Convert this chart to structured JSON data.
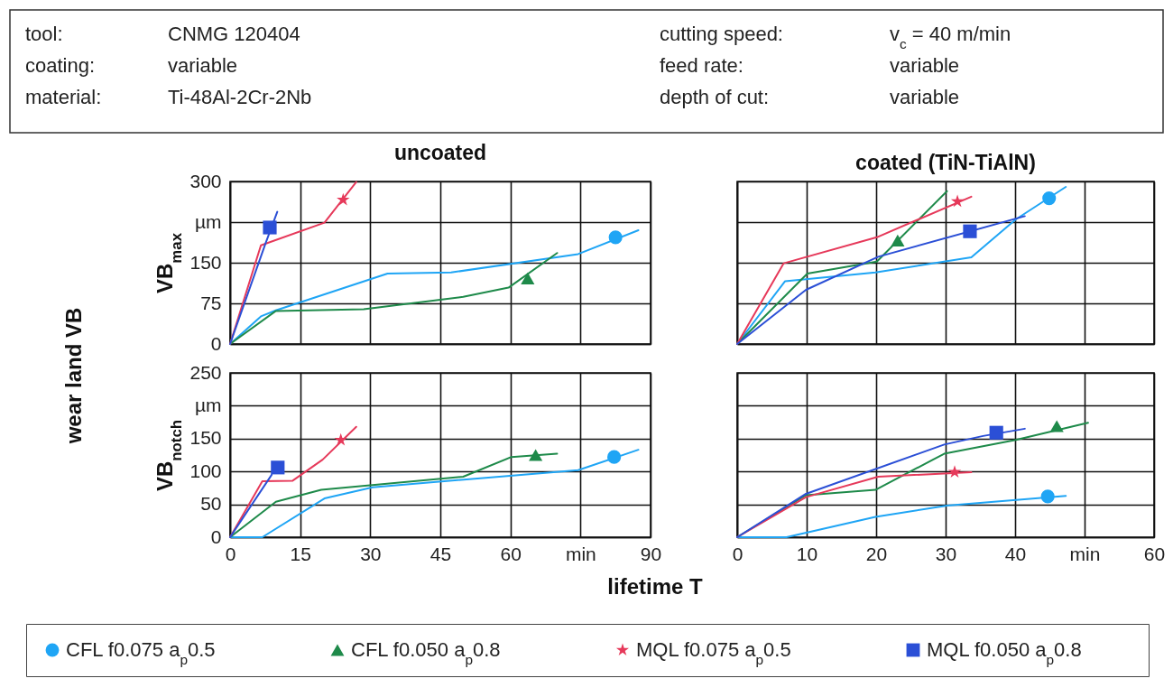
{
  "chart_data": [
    {
      "type": "other",
      "annotations": [
        "tool:",
        "CNMG 120404",
        "cutting speed:",
        "v$_{c}$ = 40 m/min",
        "coating:",
        "variable",
        "feed rate:",
        "variable",
        "material:",
        "Ti-48Al-2Cr-2Nb",
        "depth of cut:",
        "variable"
      ]
    },
    {
      "type": "line",
      "title": "uncoated",
      "ylabel": "VB$_{max}$",
      "annotations": [
        "wear land VB"
      ],
      "xlim": [
        0,
        90
      ],
      "xticks": [
        0,
        15,
        30,
        45,
        60,
        75,
        90
      ],
      "ylim": [
        0,
        300
      ],
      "yticks": [
        0,
        75,
        150,
        {
          "value": 225,
          "label": "µm"
        },
        300
      ],
      "tick_labels": "y",
      "grid": true,
      "legend": "bottom",
      "line_style": "solid",
      "series": [
        {
          "name": "CFL f0.075 a$_{p}$0.5",
          "color": "#1fa5f5",
          "marker": "none",
          "x": [
            0,
            6.6,
            9.8,
            33.7,
            47.3,
            74.5,
            87.4
          ],
          "values": [
            0,
            51,
            62,
            130,
            132,
            166,
            210
          ]
        },
        {
          "name": "CFL f0.050 a$_{p}$0.8",
          "color": "#1e8a4a",
          "marker": "none",
          "x": [
            0,
            9.8,
            28.6,
            49.9,
            59.6,
            70
          ],
          "values": [
            0,
            61,
            64,
            87,
            104,
            168
          ]
        },
        {
          "name": "MQL f0.075 a$_{p}$0.5",
          "color": "#e6395a",
          "marker": "none",
          "x": [
            0,
            6.6,
            20.2,
            27
          ],
          "values": [
            0,
            182,
            224,
            299
          ]
        },
        {
          "name": "MQL f0.050 a$_{p}$0.8",
          "color": "#2b4fd6",
          "marker": "none",
          "x": [
            0,
            7.6,
            10.1
          ],
          "values": [
            0,
            186,
            244
          ]
        },
        {
          "type": "scatter",
          "color": "#1fa5f5",
          "marker": "circle",
          "x": [
            82.5
          ],
          "values": [
            197
          ]
        },
        {
          "type": "scatter",
          "color": "#1e8a4a",
          "marker": "triangle",
          "x": [
            63.7
          ],
          "values": [
            121
          ]
        },
        {
          "type": "scatter",
          "color": "#e6395a",
          "marker": "star",
          "x": [
            24.2
          ],
          "values": [
            266
          ]
        },
        {
          "type": "scatter",
          "color": "#2b4fd6",
          "marker": "square",
          "x": [
            8.5
          ],
          "values": [
            215
          ]
        }
      ]
    },
    {
      "type": "line",
      "title": "coated (TiN-TiAlN)",
      "xlim": [
        0,
        60
      ],
      "xticks": [
        0,
        10,
        20,
        30,
        40,
        50,
        60
      ],
      "ylim": [
        0,
        300
      ],
      "yticks": [
        0,
        75,
        150,
        225,
        300
      ],
      "tick_labels": false,
      "grid": true,
      "line_style": "solid",
      "series": [
        {
          "name": "CFL f0.075 a$_{p}$0.5",
          "color": "#1fa5f5",
          "marker": "none",
          "x": [
            0,
            6.9,
            19.9,
            33.7,
            40.1,
            47.3
          ],
          "values": [
            0,
            116,
            132,
            160,
            230,
            290
          ]
        },
        {
          "name": "CFL f0.050 a$_{p}$0.8",
          "color": "#1e8a4a",
          "marker": "none",
          "x": [
            0,
            10.1,
            20.1,
            30.2
          ],
          "values": [
            0,
            130,
            152,
            282
          ]
        },
        {
          "name": "MQL f0.075 a$_{p}$0.5",
          "color": "#e6395a",
          "marker": "none",
          "x": [
            0,
            6.7,
            20.1,
            33.7
          ],
          "values": [
            0,
            149,
            197,
            272
          ]
        },
        {
          "name": "MQL f0.050 a$_{p}$0.8",
          "color": "#2b4fd6",
          "marker": "none",
          "x": [
            0,
            9.9,
            20.3,
            41.4
          ],
          "values": [
            0,
            100,
            161,
            236
          ]
        },
        {
          "type": "scatter",
          "color": "#1fa5f5",
          "marker": "circle",
          "x": [
            44.9
          ],
          "values": [
            269
          ]
        },
        {
          "type": "scatter",
          "color": "#1e8a4a",
          "marker": "triangle",
          "x": [
            23.1
          ],
          "values": [
            191
          ]
        },
        {
          "type": "scatter",
          "color": "#e6395a",
          "marker": "star",
          "x": [
            31.7
          ],
          "values": [
            263
          ]
        },
        {
          "type": "scatter",
          "color": "#2b4fd6",
          "marker": "square",
          "x": [
            33.5
          ],
          "values": [
            208
          ]
        }
      ]
    },
    {
      "type": "line",
      "ylabel": "VB$_{notch}$",
      "xlabel": "lifetime T",
      "xlim": [
        0,
        90
      ],
      "xticks": [
        0,
        15,
        30,
        45,
        60,
        {
          "value": 75,
          "label": "min"
        },
        90
      ],
      "ylim": [
        0,
        250
      ],
      "yticks": [
        0,
        50,
        100,
        150,
        {
          "value": 200,
          "label": "µm"
        },
        250
      ],
      "grid": true,
      "line_style": "solid",
      "series": [
        {
          "name": "CFL f0.075 a$_{p}$0.5",
          "color": "#1fa5f5",
          "marker": "none",
          "x": [
            0,
            6.9,
            20.2,
            30.5,
            74.5,
            87.4
          ],
          "values": [
            0,
            0,
            59,
            76,
            102,
            133
          ]
        },
        {
          "name": "CFL f0.050 a$_{p}$0.8",
          "color": "#1e8a4a",
          "marker": "none",
          "x": [
            0,
            9.8,
            19.5,
            49.9,
            60.2,
            70
          ],
          "values": [
            0,
            54,
            72,
            92,
            122,
            127
          ]
        },
        {
          "name": "MQL f0.075 a$_{p}$0.5",
          "color": "#e6395a",
          "marker": "none",
          "x": [
            0,
            6.9,
            13.4,
            19.8,
            27
          ],
          "values": [
            0,
            85,
            86,
            118,
            168
          ]
        },
        {
          "name": "MQL f0.050 a$_{p}$0.8",
          "color": "#2b4fd6",
          "marker": "none",
          "x": [
            0,
            8.9
          ],
          "values": [
            0,
            95
          ]
        },
        {
          "type": "scatter",
          "color": "#1fa5f5",
          "marker": "circle",
          "x": [
            82.2
          ],
          "values": [
            122
          ]
        },
        {
          "type": "scatter",
          "color": "#1e8a4a",
          "marker": "triangle",
          "x": [
            65.4
          ],
          "values": [
            125
          ]
        },
        {
          "type": "scatter",
          "color": "#e6395a",
          "marker": "star",
          "x": [
            23.7
          ],
          "values": [
            148
          ]
        },
        {
          "type": "scatter",
          "color": "#2b4fd6",
          "marker": "square",
          "x": [
            10.2
          ],
          "values": [
            106
          ]
        }
      ]
    },
    {
      "type": "line",
      "xlim": [
        0,
        60
      ],
      "xticks": [
        0,
        10,
        20,
        30,
        40,
        {
          "value": 50,
          "label": "min"
        },
        60
      ],
      "ylim": [
        0,
        250
      ],
      "yticks": [
        0,
        50,
        100,
        150,
        200,
        250
      ],
      "tick_labels": "x",
      "grid": true,
      "line_style": "solid",
      "series": [
        {
          "name": "CFL f0.075 a$_{p}$0.5",
          "color": "#1fa5f5",
          "marker": "none",
          "x": [
            0,
            7.1,
            19.9,
            30.2,
            47.3
          ],
          "values": [
            0,
            0,
            31,
            48,
            63
          ]
        },
        {
          "name": "CFL f0.050 a$_{p}$0.8",
          "color": "#1e8a4a",
          "marker": "none",
          "x": [
            0,
            9.9,
            19.9,
            29.8,
            40.1,
            50.5
          ],
          "values": [
            0,
            64,
            72,
            127,
            148,
            174
          ]
        },
        {
          "name": "MQL f0.075 a$_{p}$0.5",
          "color": "#e6395a",
          "marker": "none",
          "x": [
            0,
            9.9,
            20.3,
            33.7
          ],
          "values": [
            0,
            61,
            92,
            99
          ]
        },
        {
          "name": "MQL f0.050 a$_{p}$0.8",
          "color": "#2b4fd6",
          "marker": "none",
          "x": [
            0,
            9.9,
            29.8,
            35.4,
            41.4
          ],
          "values": [
            0,
            66,
            141,
            154,
            165
          ]
        },
        {
          "type": "scatter",
          "color": "#1fa5f5",
          "marker": "circle",
          "x": [
            44.7
          ],
          "values": [
            62
          ]
        },
        {
          "type": "scatter",
          "color": "#1e8a4a",
          "marker": "triangle",
          "x": [
            46
          ],
          "values": [
            169
          ]
        },
        {
          "type": "scatter",
          "color": "#e6395a",
          "marker": "star",
          "x": [
            31.3
          ],
          "values": [
            99
          ]
        },
        {
          "type": "scatter",
          "color": "#2b4fd6",
          "marker": "square",
          "x": [
            37.3
          ],
          "values": [
            159
          ]
        }
      ]
    }
  ]
}
